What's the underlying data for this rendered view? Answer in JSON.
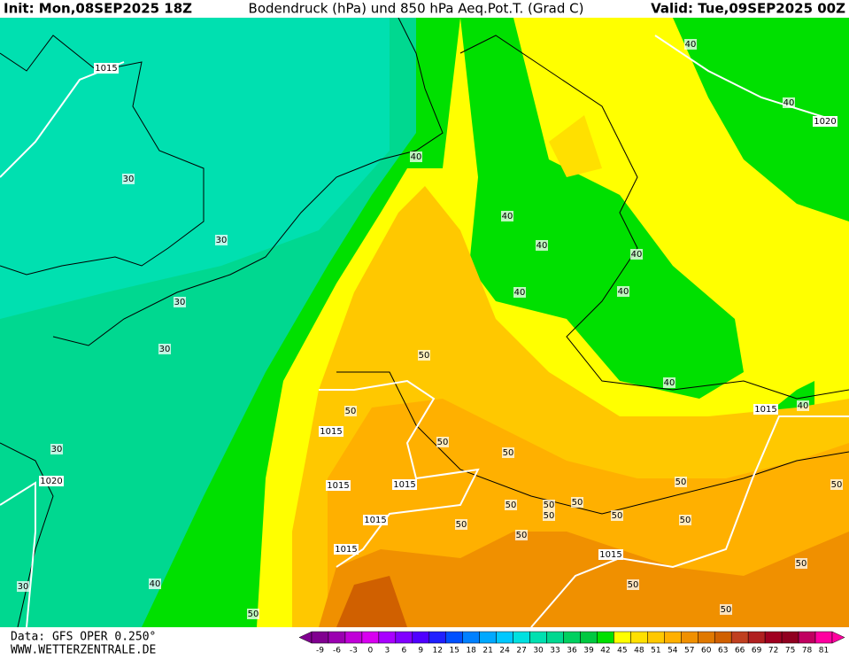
{
  "header": {
    "init": "Init: Mon,08SEP2025 18Z",
    "title": "Bodendruck (hPa) und 850 hPa Aeq.Pot.T. (Grad C)",
    "valid": "Valid: Tue,09SEP2025 00Z"
  },
  "footer": {
    "data_source": "Data: GFS OPER 0.250°",
    "website": "WWW.WETTERZENTRALE.DE"
  },
  "colorbar": [
    {
      "label": "-9",
      "color": "#800090"
    },
    {
      "label": "-6",
      "color": "#9a00b0"
    },
    {
      "label": "-3",
      "color": "#c000d8"
    },
    {
      "label": "0",
      "color": "#d800f0"
    },
    {
      "label": "3",
      "color": "#a800ff"
    },
    {
      "label": "6",
      "color": "#8000ff"
    },
    {
      "label": "9",
      "color": "#5000ff"
    },
    {
      "label": "12",
      "color": "#2020ff"
    },
    {
      "label": "15",
      "color": "#0050ff"
    },
    {
      "label": "18",
      "color": "#0080ff"
    },
    {
      "label": "21",
      "color": "#00a8ff"
    },
    {
      "label": "24",
      "color": "#00c8ff"
    },
    {
      "label": "27",
      "color": "#00e0e0"
    },
    {
      "label": "30",
      "color": "#00e0b0"
    },
    {
      "label": "33",
      "color": "#00d890"
    },
    {
      "label": "36",
      "color": "#00d060"
    },
    {
      "label": "39",
      "color": "#00c840"
    },
    {
      "label": "42",
      "color": "#00e000"
    },
    {
      "label": "45",
      "color": "#ffff00"
    },
    {
      "label": "48",
      "color": "#ffe000"
    },
    {
      "label": "51",
      "color": "#ffc800"
    },
    {
      "label": "54",
      "color": "#ffb000"
    },
    {
      "label": "57",
      "color": "#f09000"
    },
    {
      "label": "60",
      "color": "#e07800"
    },
    {
      "label": "63",
      "color": "#d06000"
    },
    {
      "label": "66",
      "color": "#c04020"
    },
    {
      "label": "69",
      "color": "#b02020"
    },
    {
      "label": "72",
      "color": "#a00020"
    },
    {
      "label": "75",
      "color": "#900020"
    },
    {
      "label": "78",
      "color": "#c00060"
    },
    {
      "label": "81",
      "color": "#ff00a0"
    }
  ],
  "contour_labels": [
    "1015",
    "40",
    "40",
    "1020",
    "30",
    "40",
    "30",
    "40",
    "40",
    "40",
    "30",
    "40",
    "40",
    "30",
    "50",
    "40",
    "1015",
    "40",
    "50",
    "1015",
    "50",
    "50",
    "30",
    "1015",
    "1015",
    "50",
    "50",
    "1020",
    "50",
    "50",
    "50",
    "1015",
    "50",
    "50",
    "50",
    "50",
    "50",
    "1015",
    "1015",
    "50",
    "40",
    "30",
    "50",
    "50",
    "50"
  ]
}
